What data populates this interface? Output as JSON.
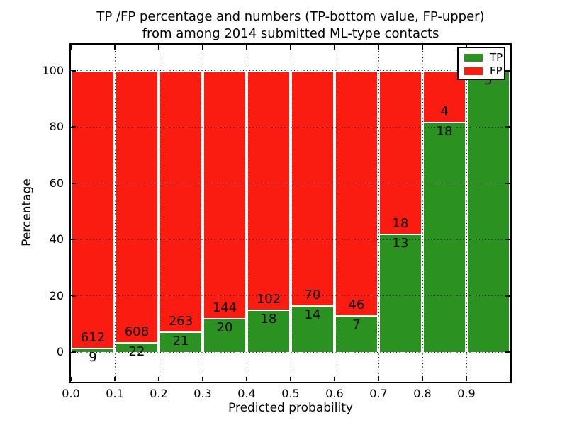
{
  "figure": {
    "title_line1": "TP /FP percentage and numbers (TP-bottom value, FP-upper)",
    "title_line2": "from among 2014 submitted ML-type contacts"
  },
  "chart_data": {
    "type": "bar",
    "stacked": true,
    "normalized_to": 100,
    "title": "TP /FP percentage and numbers (TP-bottom value, FP-upper) from among 2014 submitted ML-type contacts",
    "xlabel": "Predicted probability",
    "ylabel": "Percentage",
    "xlim": [
      0.0,
      1.0
    ],
    "ylim": [
      -10,
      110
    ],
    "x_tick_labels": [
      "0.0",
      "0.1",
      "0.2",
      "0.3",
      "0.4",
      "0.5",
      "0.6",
      "0.7",
      "0.8",
      "0.9"
    ],
    "y_tick_values": [
      0,
      20,
      40,
      60,
      80,
      100
    ],
    "y_tick_labels": [
      "0",
      "20",
      "40",
      "60",
      "80",
      "100"
    ],
    "grid": "dotted, drawn above bars",
    "bin_width": 0.1,
    "bins": [
      {
        "range": [
          0.0,
          0.1
        ],
        "tp": 9,
        "fp": 612,
        "tp_pct": 1.45,
        "tp_label": "9",
        "fp_label": "612"
      },
      {
        "range": [
          0.1,
          0.2
        ],
        "tp": 22,
        "fp": 608,
        "tp_pct": 3.49,
        "tp_label": "22",
        "fp_label": "608"
      },
      {
        "range": [
          0.2,
          0.3
        ],
        "tp": 21,
        "fp": 263,
        "tp_pct": 7.39,
        "tp_label": "21",
        "fp_label": "263"
      },
      {
        "range": [
          0.3,
          0.4
        ],
        "tp": 20,
        "fp": 144,
        "tp_pct": 12.2,
        "tp_label": "20",
        "fp_label": "144"
      },
      {
        "range": [
          0.4,
          0.5
        ],
        "tp": 18,
        "fp": 102,
        "tp_pct": 15.0,
        "tp_label": "18",
        "fp_label": "102"
      },
      {
        "range": [
          0.5,
          0.6
        ],
        "tp": 14,
        "fp": 70,
        "tp_pct": 16.67,
        "tp_label": "14",
        "fp_label": "70"
      },
      {
        "range": [
          0.6,
          0.7
        ],
        "tp": 7,
        "fp": 46,
        "tp_pct": 13.21,
        "tp_label": "7",
        "fp_label": "46"
      },
      {
        "range": [
          0.7,
          0.8
        ],
        "tp": 13,
        "fp": 18,
        "tp_pct": 41.94,
        "tp_label": "13",
        "fp_label": "18"
      },
      {
        "range": [
          0.8,
          0.9
        ],
        "tp": 18,
        "fp": 4,
        "tp_pct": 81.82,
        "tp_label": "18",
        "fp_label": "4"
      },
      {
        "range": [
          0.9,
          1.0
        ],
        "tp": 5,
        "fp": 0,
        "tp_pct": 100.0,
        "tp_label": "5",
        "fp_label": ""
      }
    ],
    "legend": {
      "position": "upper right",
      "entries": [
        {
          "label": "TP",
          "color": "#2b9121"
        },
        {
          "label": "FP",
          "color": "#fb1c11"
        }
      ]
    }
  },
  "colors": {
    "tp_green": "#2b9121",
    "fp_red": "#fb1c11",
    "bar_edge": "#ffffff",
    "grid": "#000000",
    "background": "#ffffff"
  }
}
